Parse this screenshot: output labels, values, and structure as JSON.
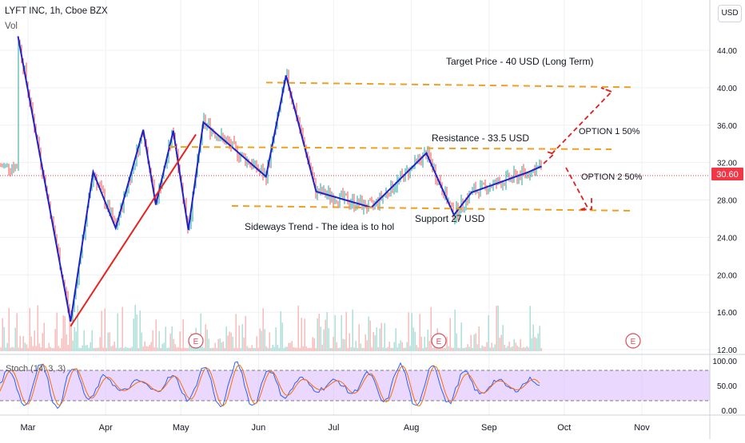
{
  "header": {
    "symbol": "LYFT INC, 1h, Cboe BZX",
    "volume_label": "Vol",
    "currency_button": "USD"
  },
  "price_axis": {
    "ticks": [
      "44.00",
      "40.00",
      "36.00",
      "32.00",
      "28.00",
      "24.00",
      "20.00",
      "16.00",
      "12.00"
    ],
    "last_price": "30.60",
    "last_price_color": "#f23645"
  },
  "stoch": {
    "label": "Stoch (14, 3, 3)",
    "ticks": [
      "100.00",
      "50.00",
      "0.00"
    ],
    "band_color": "#d9b8ff"
  },
  "time_axis": {
    "labels": [
      "Mar",
      "Apr",
      "May",
      "Jun",
      "Jul",
      "Aug",
      "Sep",
      "Oct",
      "Nov"
    ]
  },
  "earnings_marker": "E",
  "colors": {
    "pattern_line": "#1e22c8",
    "trend_line": "#e8231e",
    "level_line": "#f0a020",
    "target_arrow": "#e02020"
  },
  "annotations": {
    "target": "Target Price - 40 USD (Long Term)",
    "resistance": "Resistance - 33.5 USD",
    "option1": "OPTION 1 50%",
    "option2": "OPTION 2 50%",
    "sideways": "Sideways Trend -  The idea is to hol",
    "support": "Support 27 USD"
  },
  "chart_data": {
    "type": "line",
    "title": "LYFT INC, 1h, Cboe BZX",
    "ylim": [
      12,
      46
    ],
    "price_polyline": {
      "name": "",
      "dates": [
        "2019-02-25",
        "2019-03-18",
        "2019-03-27",
        "2019-04-05",
        "2019-04-16",
        "2019-04-21",
        "2019-04-28",
        "2019-05-04",
        "2019-05-10",
        "2019-06-04",
        "2019-06-12",
        "2019-06-24",
        "2019-07-16",
        "2019-08-07",
        "2019-08-18",
        "2019-08-25",
        "2019-09-16",
        "2019-09-22"
      ],
      "values": [
        45.5,
        15.0,
        31.0,
        25.0,
        35.5,
        27.5,
        35.4,
        24.8,
        36.3,
        30.5,
        41.3,
        28.9,
        27.2,
        33.0,
        26.4,
        28.8,
        30.9,
        31.6
      ]
    },
    "levels": [
      {
        "label": "Target Price - 40 USD (Long Term)",
        "value": 40.3
      },
      {
        "label": "Resistance - 33.5 USD",
        "value": 33.6
      },
      {
        "label": "Support 27 USD",
        "value": 26.9
      }
    ],
    "trend_line": {
      "dates": [
        "2019-03-18",
        "2019-05-07"
      ],
      "values": [
        14.5,
        35.0
      ]
    },
    "stoch_levels": [
      80,
      20
    ]
  }
}
